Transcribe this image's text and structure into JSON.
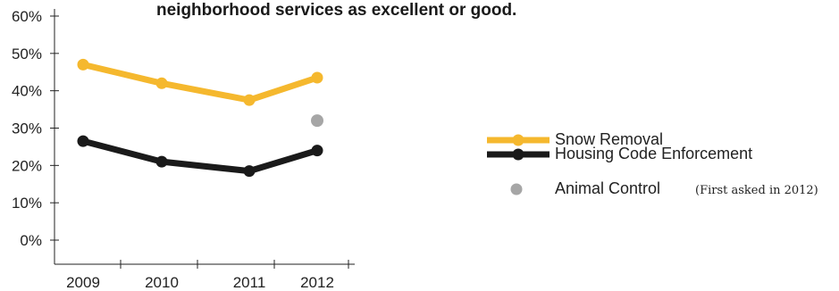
{
  "chart_data": {
    "type": "line",
    "title": "neighborhood services as excellent or good.",
    "categories": [
      "2009",
      "2010",
      "2011",
      "2012"
    ],
    "y_ticks": [
      "60%",
      "50%",
      "40%",
      "30%",
      "20%",
      "10%",
      "0%"
    ],
    "ylim": [
      0,
      60
    ],
    "grid": false,
    "legend_position": "right",
    "series": [
      {
        "name": "Snow Removal",
        "color": "#f5b82e",
        "values": [
          47,
          42,
          37.5,
          43.5
        ]
      },
      {
        "name": "Housing Code Enforcement",
        "color": "#1a1a1a",
        "values": [
          26.5,
          21,
          18.5,
          24
        ]
      },
      {
        "name": "Animal Control",
        "note": "(First asked in 2012)",
        "color": "#a6a6a6",
        "values": [
          null,
          null,
          null,
          32
        ]
      }
    ]
  }
}
